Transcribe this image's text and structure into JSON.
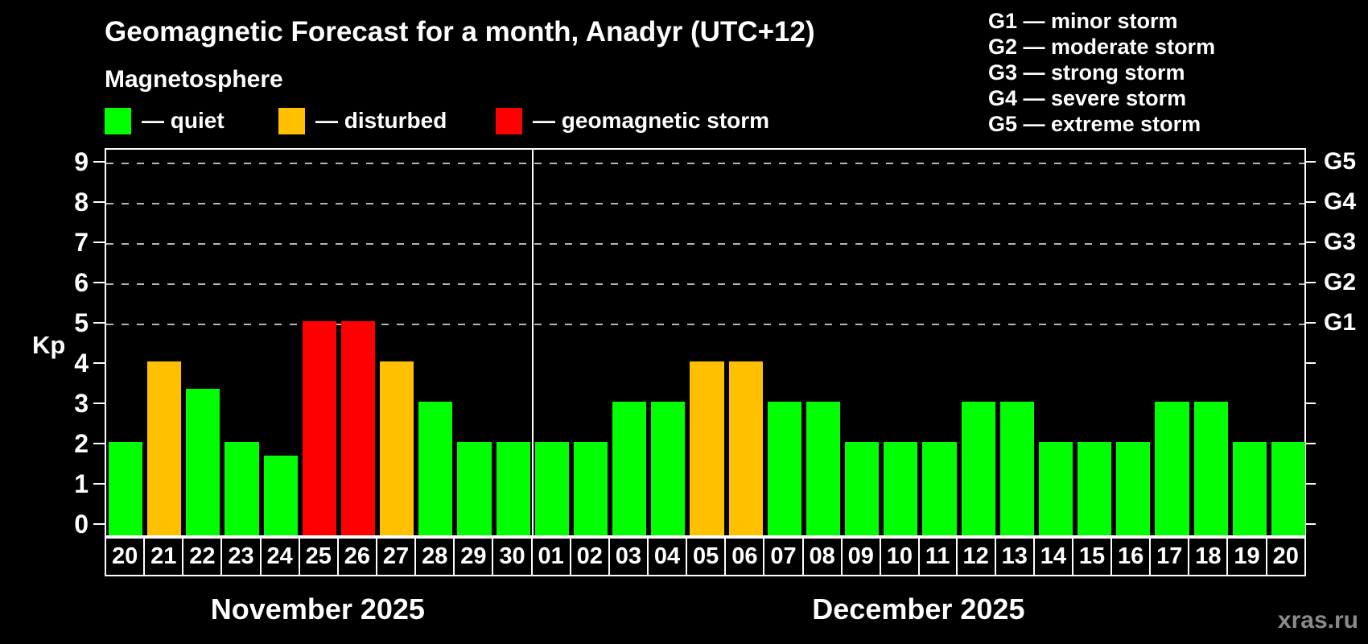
{
  "title": "Geomagnetic Forecast for a month, Anadyr (UTC+12)",
  "subtitle": "Magnetosphere",
  "dash": "—",
  "legend": {
    "items": [
      {
        "label": "quiet",
        "status": "quiet",
        "color": "#00ff00"
      },
      {
        "label": "disturbed",
        "status": "disturbed",
        "color": "#ffc000"
      },
      {
        "label": "geomagnetic storm",
        "status": "storm",
        "color": "#ff0000"
      }
    ]
  },
  "storm_scale_legend": [
    {
      "code": "G1",
      "label": "minor storm"
    },
    {
      "code": "G2",
      "label": "moderate storm"
    },
    {
      "code": "G3",
      "label": "strong storm"
    },
    {
      "code": "G4",
      "label": "severe storm"
    },
    {
      "code": "G5",
      "label": "extreme storm"
    }
  ],
  "colors": {
    "quiet": "#00ff00",
    "disturbed": "#ffc000",
    "storm": "#ff0000",
    "background": "#000000",
    "axis": "#ffffff",
    "gridline": "#b5b5b5",
    "watermark": "#8a8a8a"
  },
  "chart_data": {
    "type": "bar",
    "title": "Geomagnetic Forecast for a month, Anadyr (UTC+12)",
    "xlabel": "",
    "ylabel": "Kp",
    "ylim": [
      0,
      9
    ],
    "yticks": [
      0,
      1,
      2,
      3,
      4,
      5,
      6,
      7,
      8,
      9
    ],
    "gridline_kp": [
      5,
      6,
      7,
      8,
      9
    ],
    "grid": "horizontal dashed at Kp 5-9 only",
    "legend_position": "top",
    "right_axis_labels": [
      {
        "kp": 5,
        "label": "G1"
      },
      {
        "kp": 6,
        "label": "G2"
      },
      {
        "kp": 7,
        "label": "G3"
      },
      {
        "kp": 8,
        "label": "G4"
      },
      {
        "kp": 9,
        "label": "G5"
      }
    ],
    "months": [
      {
        "label": "November 2025",
        "days": [
          {
            "date": "20",
            "kp": 2,
            "status": "quiet"
          },
          {
            "date": "21",
            "kp": 4,
            "status": "disturbed"
          },
          {
            "date": "22",
            "kp": 3.33,
            "status": "quiet"
          },
          {
            "date": "23",
            "kp": 2,
            "status": "quiet"
          },
          {
            "date": "24",
            "kp": 1.67,
            "status": "quiet"
          },
          {
            "date": "25",
            "kp": 5,
            "status": "storm"
          },
          {
            "date": "26",
            "kp": 5,
            "status": "storm"
          },
          {
            "date": "27",
            "kp": 4,
            "status": "disturbed"
          },
          {
            "date": "28",
            "kp": 3,
            "status": "quiet"
          },
          {
            "date": "29",
            "kp": 2,
            "status": "quiet"
          },
          {
            "date": "30",
            "kp": 2,
            "status": "quiet"
          }
        ]
      },
      {
        "label": "December 2025",
        "days": [
          {
            "date": "01",
            "kp": 2,
            "status": "quiet"
          },
          {
            "date": "02",
            "kp": 2,
            "status": "quiet"
          },
          {
            "date": "03",
            "kp": 3,
            "status": "quiet"
          },
          {
            "date": "04",
            "kp": 3,
            "status": "quiet"
          },
          {
            "date": "05",
            "kp": 4,
            "status": "disturbed"
          },
          {
            "date": "06",
            "kp": 4,
            "status": "disturbed"
          },
          {
            "date": "07",
            "kp": 3,
            "status": "quiet"
          },
          {
            "date": "08",
            "kp": 3,
            "status": "quiet"
          },
          {
            "date": "09",
            "kp": 2,
            "status": "quiet"
          },
          {
            "date": "10",
            "kp": 2,
            "status": "quiet"
          },
          {
            "date": "11",
            "kp": 2,
            "status": "quiet"
          },
          {
            "date": "12",
            "kp": 3,
            "status": "quiet"
          },
          {
            "date": "13",
            "kp": 3,
            "status": "quiet"
          },
          {
            "date": "14",
            "kp": 2,
            "status": "quiet"
          },
          {
            "date": "15",
            "kp": 2,
            "status": "quiet"
          },
          {
            "date": "16",
            "kp": 2,
            "status": "quiet"
          },
          {
            "date": "17",
            "kp": 3,
            "status": "quiet"
          },
          {
            "date": "18",
            "kp": 3,
            "status": "quiet"
          },
          {
            "date": "19",
            "kp": 2,
            "status": "quiet"
          },
          {
            "date": "20",
            "kp": 2,
            "status": "quiet"
          }
        ]
      }
    ]
  },
  "watermark": "xras.ru"
}
